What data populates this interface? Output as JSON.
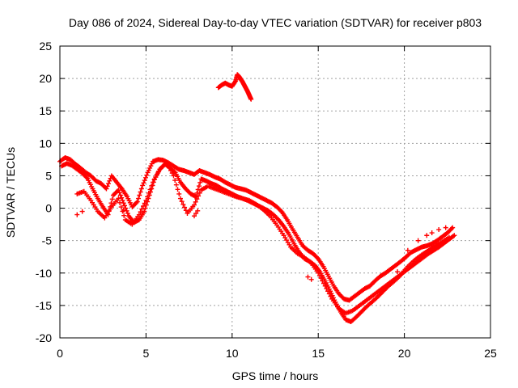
{
  "chart_data": {
    "type": "scatter",
    "title": "Day 086 of 2024, Sidereal Day-to-day VTEC variation (SDTVAR) for receiver p803",
    "xlabel": "GPS time / hours",
    "ylabel": "SDTVAR / TECUs",
    "xlim": [
      0,
      25
    ],
    "ylim": [
      -20,
      25
    ],
    "xticks": [
      "0",
      "5",
      "10",
      "15",
      "20",
      "25"
    ],
    "yticks": [
      "25",
      "20",
      "15",
      "10",
      "5",
      "0",
      "-5",
      "-10",
      "-15",
      "-20"
    ],
    "grid": true,
    "marker": "plus",
    "colors": {
      "series": "#ff0000",
      "grid": "#a0a0a0",
      "axes": "#000000"
    },
    "series": [
      {
        "name": "track-1",
        "x": [
          0.0,
          0.3,
          0.6,
          0.9,
          1.2,
          1.5,
          1.8,
          2.1,
          2.4,
          2.7,
          3.0,
          3.3,
          3.6,
          3.9,
          4.2,
          4.5,
          4.8,
          5.1,
          5.4,
          5.7,
          6.0,
          6.3,
          6.6,
          6.9,
          7.2,
          7.5,
          7.8,
          8.1,
          8.4,
          8.7,
          9.0,
          9.3,
          9.6,
          9.9,
          10.2,
          10.5,
          10.8,
          11.1,
          11.4,
          11.7,
          12.0,
          12.3,
          12.6,
          12.9,
          13.2,
          13.5,
          13.8,
          14.1,
          14.4,
          14.7,
          15.0,
          15.3,
          15.6,
          15.9,
          16.2,
          16.5,
          16.8,
          17.1,
          17.4,
          17.7,
          18.0,
          18.3,
          18.6,
          18.9,
          19.2,
          19.5,
          19.8,
          20.1,
          20.4,
          20.7,
          21.0,
          21.3,
          21.6,
          21.9,
          22.2,
          22.5,
          22.8
        ],
        "y": [
          7.2,
          7.8,
          7.5,
          6.8,
          6.2,
          5.5,
          5.0,
          4.2,
          3.8,
          3.0,
          5.0,
          4.0,
          3.0,
          1.8,
          0.2,
          1.0,
          3.5,
          5.5,
          7.2,
          7.5,
          7.4,
          7.0,
          6.5,
          6.0,
          5.8,
          5.5,
          5.2,
          5.8,
          5.5,
          5.2,
          4.8,
          4.5,
          4.0,
          3.6,
          3.2,
          3.0,
          2.8,
          2.4,
          2.0,
          1.6,
          1.2,
          0.8,
          0.2,
          -0.6,
          -1.8,
          -3.2,
          -4.5,
          -5.8,
          -6.5,
          -7.0,
          -7.8,
          -9.0,
          -10.5,
          -12.0,
          -13.2,
          -14.0,
          -14.2,
          -13.6,
          -13.0,
          -12.4,
          -12.0,
          -11.2,
          -10.5,
          -10.0,
          -9.4,
          -8.8,
          -8.2,
          -7.5,
          -6.8,
          -6.4,
          -6.0,
          -5.8,
          -5.5,
          -5.0,
          -4.4,
          -3.8,
          -3.0
        ]
      },
      {
        "name": "track-2",
        "x": [
          0.1,
          0.4,
          0.7,
          1.0,
          1.3,
          1.6,
          1.9,
          2.2,
          2.5,
          2.8,
          3.1,
          3.4,
          3.7,
          4.0,
          4.3,
          4.6,
          4.9,
          5.2,
          5.5,
          5.8,
          6.1,
          6.4,
          6.7,
          7.0,
          7.3,
          7.6,
          7.9,
          8.2,
          8.5,
          8.8,
          9.1,
          9.4,
          9.7,
          10.0,
          10.3,
          10.6,
          10.9,
          11.2,
          11.5,
          11.8,
          12.1,
          12.4,
          12.7,
          13.0,
          13.3,
          13.6,
          13.9,
          14.2,
          14.5,
          14.8,
          15.1,
          15.4,
          15.7,
          16.0,
          16.3,
          16.6,
          16.9,
          17.2,
          17.5,
          17.8,
          18.1,
          18.4,
          18.7,
          19.0,
          19.3,
          19.6,
          19.9,
          20.2,
          20.5,
          20.8,
          21.1,
          21.4,
          21.7,
          22.0,
          22.3,
          22.6,
          22.9
        ],
        "y": [
          6.5,
          6.9,
          6.6,
          6.0,
          5.4,
          4.6,
          3.0,
          1.5,
          0.2,
          -1.0,
          2.0,
          2.8,
          0.8,
          -1.2,
          -2.2,
          -1.8,
          -0.5,
          2.0,
          4.5,
          6.0,
          6.8,
          6.2,
          5.5,
          4.0,
          3.0,
          2.2,
          1.8,
          4.5,
          4.2,
          3.8,
          3.5,
          3.0,
          2.6,
          2.2,
          1.8,
          1.5,
          1.2,
          0.8,
          0.4,
          0.0,
          -0.4,
          -1.0,
          -1.8,
          -2.8,
          -4.0,
          -5.5,
          -6.8,
          -7.8,
          -8.2,
          -8.8,
          -9.8,
          -11.2,
          -12.8,
          -14.5,
          -16.0,
          -17.2,
          -17.5,
          -16.8,
          -16.0,
          -15.2,
          -14.5,
          -13.8,
          -13.0,
          -12.2,
          -11.5,
          -10.8,
          -10.0,
          -9.4,
          -8.8,
          -8.2,
          -7.6,
          -7.0,
          -6.5,
          -6.0,
          -5.4,
          -4.8,
          -4.2
        ]
      },
      {
        "name": "track-3",
        "x": [
          1.0,
          1.4,
          1.8,
          2.2,
          2.6,
          3.0,
          3.4,
          3.8,
          4.2,
          4.6,
          5.0,
          5.4,
          5.8,
          6.2,
          6.6,
          7.0,
          7.4,
          7.8,
          8.2,
          8.6,
          9.0,
          9.4,
          9.8,
          10.2,
          10.6,
          11.0,
          11.4,
          11.8,
          12.2,
          12.6,
          13.0,
          13.4,
          13.8,
          14.2,
          14.6,
          15.0,
          15.4,
          15.8,
          16.2,
          16.6,
          17.0,
          17.4,
          17.8,
          18.2,
          18.6,
          19.0,
          19.4,
          19.8,
          20.2,
          20.6,
          21.0,
          21.4,
          21.8,
          22.2,
          22.6
        ],
        "y": [
          2.2,
          2.6,
          1.2,
          -0.5,
          -1.5,
          0.2,
          1.5,
          -1.8,
          -2.5,
          -1.0,
          1.2,
          4.0,
          6.0,
          7.0,
          5.0,
          1.5,
          -0.8,
          0.5,
          2.8,
          3.4,
          3.0,
          2.6,
          2.2,
          1.8,
          1.5,
          1.2,
          0.6,
          -0.2,
          -1.2,
          -2.6,
          -4.2,
          -6.0,
          -7.0,
          -7.6,
          -8.5,
          -10.0,
          -12.0,
          -14.0,
          -15.5,
          -16.2,
          -15.8,
          -15.0,
          -14.2,
          -13.4,
          -12.6,
          -11.8,
          -11.0,
          -10.2,
          -9.0,
          -8.0,
          -7.2,
          -6.5,
          -5.8,
          -5.2,
          -4.5
        ]
      },
      {
        "name": "track-4",
        "x": [
          9.2,
          9.4,
          9.6,
          9.8,
          10.0,
          10.2,
          10.3,
          10.4,
          10.5,
          10.6,
          10.7,
          10.8,
          10.9,
          11.0,
          11.1
        ],
        "y": [
          18.6,
          19.0,
          19.3,
          19.0,
          18.8,
          19.6,
          20.6,
          20.3,
          19.9,
          19.5,
          19.0,
          18.5,
          18.0,
          17.4,
          16.8
        ]
      },
      {
        "name": "scatter",
        "x": [
          1.0,
          1.3,
          3.7,
          4.2,
          7.8,
          7.9,
          8.0,
          14.4,
          14.6,
          19.6,
          20.0,
          20.2,
          20.8,
          21.3,
          21.6,
          22.0,
          22.4
        ],
        "y": [
          -1.0,
          -0.5,
          -0.3,
          -2.0,
          -1.2,
          -0.8,
          -0.4,
          -10.6,
          -11.0,
          -9.8,
          -7.8,
          -6.5,
          -5.0,
          -4.2,
          -3.8,
          -3.3,
          -3.0
        ]
      }
    ]
  }
}
